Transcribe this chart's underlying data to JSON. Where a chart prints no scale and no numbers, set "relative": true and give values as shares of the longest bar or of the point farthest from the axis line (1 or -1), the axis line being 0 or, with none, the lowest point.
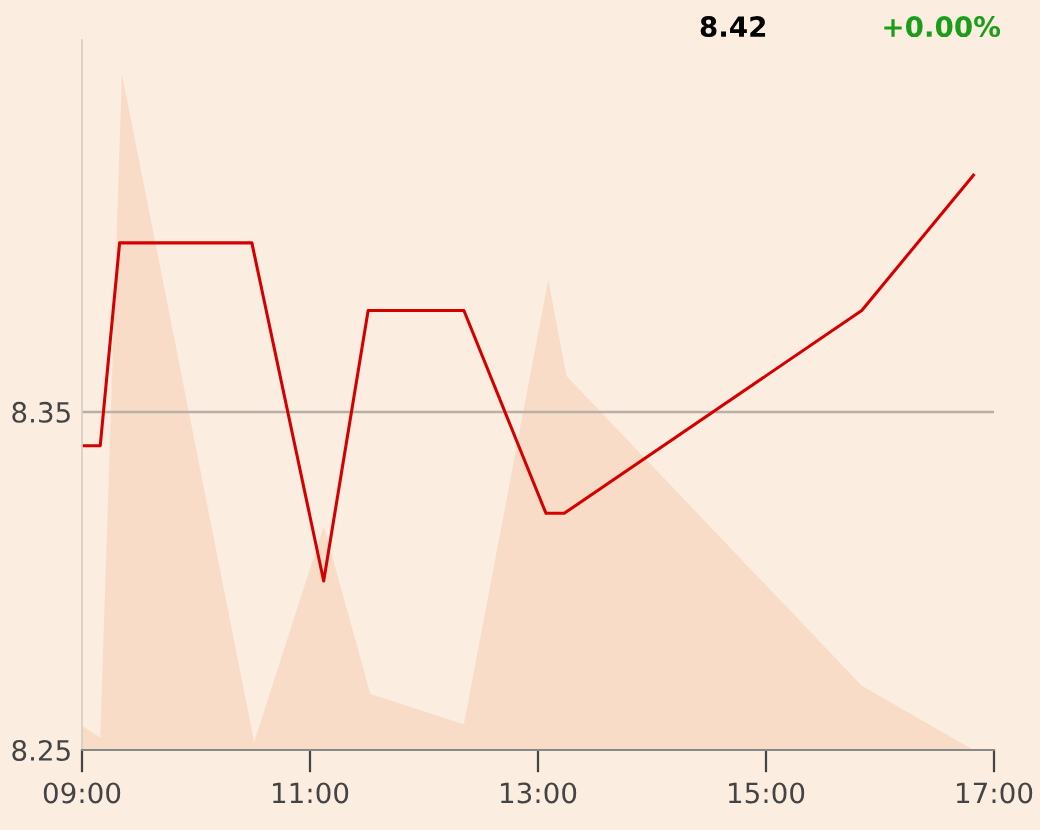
{
  "chart_data": [
    {
      "type": "line",
      "annotations": [
        "8.42",
        "+0.00%"
      ],
      "x": [
        9.0,
        9.16,
        9.33,
        10.49,
        11.12,
        11.51,
        12.35,
        13.07,
        13.23,
        15.84,
        16.82
      ],
      "series": [
        {
          "color": "#d40000",
          "values": [
            8.34,
            8.34,
            8.4,
            8.4,
            8.3,
            8.38,
            8.38,
            8.32,
            8.32,
            8.38,
            8.42
          ]
        }
      ],
      "xlim": [
        9,
        17
      ],
      "xticks": [
        {
          "value": 9,
          "label": "09:00"
        },
        {
          "value": 11,
          "label": "11:00"
        },
        {
          "value": 13,
          "label": "13:00"
        },
        {
          "value": 15,
          "label": "15:00"
        },
        {
          "value": 17,
          "label": "17:00"
        }
      ],
      "ylim": [
        8.25,
        8.46
      ],
      "yticks": [
        8.25,
        8.35
      ],
      "grid": "y",
      "marker": "none",
      "line_style": "solid"
    },
    {
      "type": "area",
      "relative": true,
      "x": [
        9.0,
        9.16,
        9.35,
        10.51,
        11.12,
        11.53,
        12.35,
        13.09,
        13.25,
        15.84,
        16.82
      ],
      "series": [
        {
          "color": "#f8dcc7",
          "values": [
            0.036,
            0.018,
            1,
            0.012,
            0.331,
            0.083,
            0.038,
            0.695,
            0.553,
            0.095,
            0
          ]
        }
      ],
      "xlim": [
        9,
        17
      ],
      "tick_labels": false
    }
  ]
}
